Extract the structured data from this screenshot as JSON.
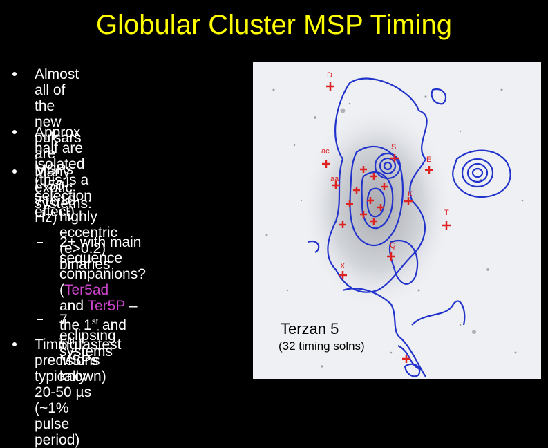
{
  "title": "Globular Cluster MSP Timing",
  "bullets": {
    "b1": [
      "Almost all of the new",
      "pulsars are MSPs (~50-716",
      "Hz)"
    ],
    "b2": [
      "Approx half are isolated",
      "(this is a selection effect)"
    ],
    "b3": "Many exotic systems:",
    "s1": [
      "10 highly eccentric",
      "(e>0.2)  binaries"
    ],
    "s2": {
      "line1": "2+ with main sequence",
      "line2_a": "companions?  (",
      "line2_b": "Ter5ad",
      "line3_a": "and ",
      "line3_b": "Ter5P",
      "line3_c": " – the 1",
      "line3_sup": "st",
      "line3_d": " and",
      "line4_a": "5",
      "line4_sup": "th",
      "line4_b": " fastest MSPs known)"
    },
    "s3": "7 eclipsing systems",
    "b4": [
      "Timing precisions typically",
      "20-50 µs (~1% pulse period)"
    ]
  },
  "figure": {
    "label": "Terzan 5",
    "sublabel": "(32 timing solns)",
    "pulsar_labels": [
      "D",
      "ac",
      "S",
      "E",
      "aa",
      "K",
      "T",
      "Q",
      "X"
    ]
  },
  "colors": {
    "title": "#ffff00",
    "highlight": "#cc44cc",
    "contour": "#2233cc",
    "markers": "#dd2222"
  }
}
